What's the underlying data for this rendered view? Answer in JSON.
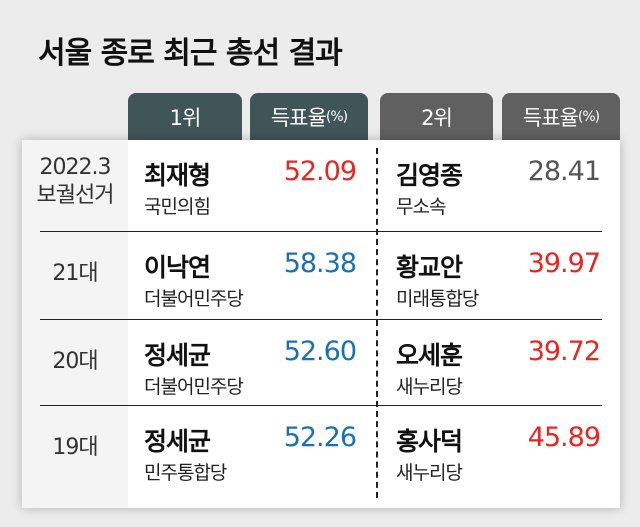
{
  "title": "서울 종로 최근 총선 결과",
  "headers": {
    "first": "1위",
    "second": "2위",
    "rate": "득표율",
    "unit": "(%)"
  },
  "colors": {
    "first_header": "#405558",
    "second_header": "#606060",
    "red": "#e8251f",
    "blue": "#1a6fb5",
    "gray": "#555555"
  },
  "rows": [
    {
      "label": "2022.3 보궐선거",
      "first": {
        "name": "최재형",
        "party": "국민의힘",
        "pct": "52.09",
        "color": "#e8251f"
      },
      "second": {
        "name": "김영종",
        "party": "무소속",
        "pct": "28.41",
        "color": "#555555"
      }
    },
    {
      "label": "21대",
      "first": {
        "name": "이낙연",
        "party": "더불어민주당",
        "pct": "58.38",
        "color": "#1a6fb5"
      },
      "second": {
        "name": "황교안",
        "party": "미래통합당",
        "pct": "39.97",
        "color": "#e8251f"
      }
    },
    {
      "label": "20대",
      "first": {
        "name": "정세균",
        "party": "더불어민주당",
        "pct": "52.60",
        "color": "#1a6fb5"
      },
      "second": {
        "name": "오세훈",
        "party": "새누리당",
        "pct": "39.72",
        "color": "#e8251f"
      }
    },
    {
      "label": "19대",
      "first": {
        "name": "정세균",
        "party": "민주통합당",
        "pct": "52.26",
        "color": "#1a6fb5"
      },
      "second": {
        "name": "홍사덕",
        "party": "새누리당",
        "pct": "45.89",
        "color": "#e8251f"
      }
    }
  ]
}
